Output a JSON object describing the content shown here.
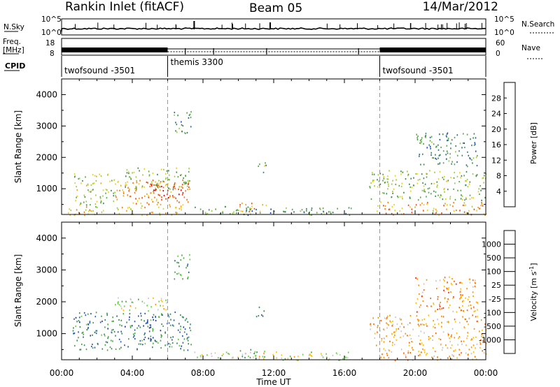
{
  "header": {
    "title": "Rankin Inlet (fitACF)",
    "beam": "Beam 05",
    "date": "14/Mar/2012"
  },
  "strip_labels": {
    "nsky": "N.Sky",
    "nsearch": "N.Search",
    "freq_line1": "Freq.",
    "freq_line2": "[MHz]",
    "nave": "Nave",
    "cpid": "CPID",
    "nsky_ticks": [
      "10^5",
      "10^0"
    ],
    "nsearch_ticks": [
      "10^5",
      "10^0"
    ],
    "freq_ticks": [
      "18",
      "8"
    ],
    "nave_ticks": [
      "60",
      "0"
    ]
  },
  "cpid_segments": [
    {
      "label": "twofsound -3501",
      "start_h": 0,
      "end_h": 6
    },
    {
      "label": "themis 3300",
      "start_h": 6,
      "end_h": 18
    },
    {
      "label": "twofsound -3501",
      "start_h": 18,
      "end_h": 24
    }
  ],
  "chart_data": [
    {
      "type": "heatmap",
      "name": "power",
      "xlabel": "Time UT",
      "ylabel": "Slant Range [km]",
      "xlim": [
        0,
        24
      ],
      "ylim": [
        180,
        4500
      ],
      "x_ticks": [
        "00:00",
        "04:00",
        "08:00",
        "12:00",
        "16:00",
        "20:00",
        "00:00"
      ],
      "y_ticks": [
        1000,
        2000,
        3000,
        4000
      ],
      "colorbar": {
        "label": "Power [dB]",
        "range": [
          0,
          32
        ],
        "ticks": [
          "4",
          "8",
          "12",
          "16",
          "20",
          "24",
          "28"
        ],
        "colors": [
          "#0019ff",
          "#1b4fc8",
          "#2c6e8c",
          "#3d8c5a",
          "#5aa84a",
          "#9ccd3c",
          "#e8d020",
          "#f0a020",
          "#f07818",
          "#f04a10",
          "#e60000"
        ]
      },
      "regions": [
        {
          "x0": 0.6,
          "x1": 3.0,
          "y0": 500,
          "y1": 1500,
          "level": 0.5
        },
        {
          "x0": 3.0,
          "x1": 7.3,
          "y0": 500,
          "y1": 1300,
          "level": 0.72
        },
        {
          "x0": 3.5,
          "x1": 7.3,
          "y0": 1000,
          "y1": 1700,
          "level": 0.45
        },
        {
          "x0": 5.0,
          "x1": 7.2,
          "y0": 700,
          "y1": 1200,
          "level": 0.9
        },
        {
          "x0": 0.3,
          "x1": 7.0,
          "y0": 180,
          "y1": 480,
          "level": 0.62
        },
        {
          "x0": 6.3,
          "x1": 7.3,
          "y0": 2700,
          "y1": 3500,
          "level": 0.35
        },
        {
          "x0": 7.5,
          "x1": 16.4,
          "y0": 180,
          "y1": 450,
          "level": 0.35
        },
        {
          "x0": 10.0,
          "x1": 11.6,
          "y0": 250,
          "y1": 600,
          "level": 0.75
        },
        {
          "x0": 11.0,
          "x1": 11.6,
          "y0": 1500,
          "y1": 1850,
          "level": 0.4
        },
        {
          "x0": 17.4,
          "x1": 24.0,
          "y0": 650,
          "y1": 1600,
          "level": 0.45
        },
        {
          "x0": 17.8,
          "x1": 24.0,
          "y0": 180,
          "y1": 600,
          "level": 0.7
        },
        {
          "x0": 20.0,
          "x1": 23.5,
          "y0": 1700,
          "y1": 2800,
          "level": 0.3
        }
      ]
    },
    {
      "type": "heatmap",
      "name": "velocity",
      "xlabel": "Time UT",
      "ylabel": "Slant Range [km]",
      "xlim": [
        0,
        24
      ],
      "ylim": [
        180,
        4500
      ],
      "x_ticks": [
        "00:00",
        "04:00",
        "08:00",
        "12:00",
        "16:00",
        "20:00",
        "00:00"
      ],
      "y_ticks": [
        1000,
        2000,
        3000,
        4000
      ],
      "colorbar": {
        "label": "Velocity [m s^-1]",
        "ticks": [
          "1000",
          "500",
          "100",
          "25",
          "-25",
          "-100",
          "-500",
          "-1000"
        ],
        "colors": [
          "#1e3c96",
          "#2d5fa8",
          "#3c8c5a",
          "#46a846",
          "#66d040",
          "#c8c8c8",
          "#ffc000",
          "#ff9000",
          "#ff6000",
          "#ff2000"
        ]
      },
      "regions": [
        {
          "x0": 0.6,
          "x1": 7.3,
          "y0": 500,
          "y1": 1700,
          "level": 0.25
        },
        {
          "x0": 4.6,
          "x1": 5.3,
          "y0": 700,
          "y1": 1600,
          "level": 0.05
        },
        {
          "x0": 3.0,
          "x1": 6.0,
          "y0": 1700,
          "y1": 2150,
          "level": 0.55
        },
        {
          "x0": 6.3,
          "x1": 7.3,
          "y0": 2700,
          "y1": 3500,
          "level": 0.3
        },
        {
          "x0": 7.5,
          "x1": 16.4,
          "y0": 180,
          "y1": 450,
          "level": 0.55
        },
        {
          "x0": 10.0,
          "x1": 11.6,
          "y0": 250,
          "y1": 550,
          "level": 0.4
        },
        {
          "x0": 11.0,
          "x1": 11.6,
          "y0": 1500,
          "y1": 1850,
          "level": 0.35
        },
        {
          "x0": 17.4,
          "x1": 24.0,
          "y0": 650,
          "y1": 1600,
          "level": 0.7
        },
        {
          "x0": 17.8,
          "x1": 24.0,
          "y0": 180,
          "y1": 600,
          "level": 0.72
        },
        {
          "x0": 20.0,
          "x1": 23.5,
          "y0": 1700,
          "y1": 2800,
          "level": 0.75
        }
      ]
    }
  ]
}
